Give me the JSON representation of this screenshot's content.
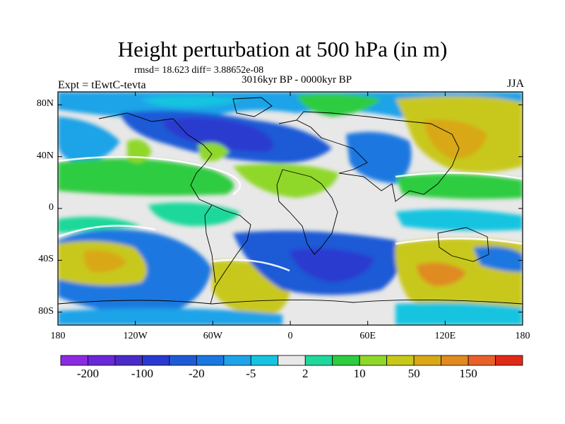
{
  "title": "Height perturbation at 500 hPa (in m)",
  "stats_line": "rmsd= 18.623 diff= 3.88652e-08",
  "period": "3016kyr BP - 0000kyr BP",
  "experiment": "Expt = tEwtC-tevta",
  "season": "JJA",
  "map": {
    "projection": "cylindrical equidistant",
    "lon_range": [
      -180,
      180
    ],
    "lat_range": [
      -90,
      90
    ],
    "lat_ticks": [
      {
        "value": 80,
        "label": "80N"
      },
      {
        "value": 40,
        "label": "40N"
      },
      {
        "value": 0,
        "label": "0"
      },
      {
        "value": -40,
        "label": "40S"
      },
      {
        "value": -80,
        "label": "80S"
      }
    ],
    "lon_ticks": [
      {
        "value": -180,
        "label": "180"
      },
      {
        "value": -120,
        "label": "120W"
      },
      {
        "value": -60,
        "label": "60W"
      },
      {
        "value": 0,
        "label": "0"
      },
      {
        "value": 60,
        "label": "60E"
      },
      {
        "value": 120,
        "label": "120E"
      },
      {
        "value": 180,
        "label": "180"
      }
    ]
  },
  "colorbar": {
    "colors": [
      "#8a2be2",
      "#6a28d8",
      "#4a2bc8",
      "#2a3ad0",
      "#1f5ad6",
      "#1a78e0",
      "#1fa3e8",
      "#17c4e0",
      "#e8e8e8",
      "#1fd89a",
      "#2ecc40",
      "#8fd82a",
      "#c8c81a",
      "#d8a818",
      "#e08a20",
      "#e8602a",
      "#e02a18"
    ],
    "labels": [
      {
        "index": 1,
        "text": "-200"
      },
      {
        "index": 3,
        "text": "-100"
      },
      {
        "index": 5,
        "text": "-20"
      },
      {
        "index": 7,
        "text": "-5"
      },
      {
        "index": 9,
        "text": "2"
      },
      {
        "index": 11,
        "text": "10"
      },
      {
        "index": 13,
        "text": "50"
      },
      {
        "index": 15,
        "text": "150"
      }
    ]
  }
}
